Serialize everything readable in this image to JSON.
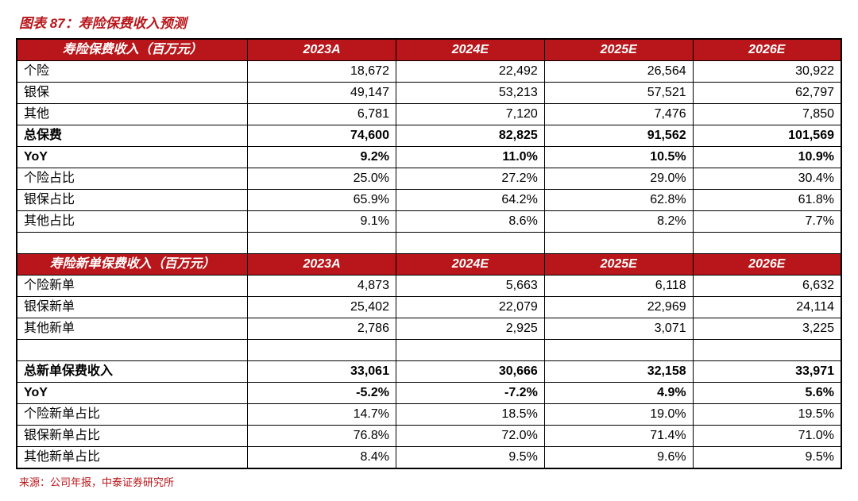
{
  "title_prefix": "图表 87：",
  "title_text": "寿险保费收入预测",
  "colors": {
    "header_bg": "#b8161a",
    "header_fg": "#ffffff",
    "border": "#000000",
    "title": "#b8161a",
    "source": "#b8161a",
    "body_bg": "#ffffff"
  },
  "section1": {
    "header_label": "寿险保费收入（百万元）",
    "header_cols": [
      "2023A",
      "2024E",
      "2025E",
      "2026E"
    ],
    "rows": [
      {
        "label": "个险",
        "vals": [
          "18,672",
          "22,492",
          "26,564",
          "30,922"
        ],
        "bold": false
      },
      {
        "label": "银保",
        "vals": [
          "49,147",
          "53,213",
          "57,521",
          "62,797"
        ],
        "bold": false
      },
      {
        "label": "其他",
        "vals": [
          "6,781",
          "7,120",
          "7,476",
          "7,850"
        ],
        "bold": false
      },
      {
        "label": "总保费",
        "vals": [
          "74,600",
          "82,825",
          "91,562",
          "101,569"
        ],
        "bold": true
      },
      {
        "label": "YoY",
        "vals": [
          "9.2%",
          "11.0%",
          "10.5%",
          "10.9%"
        ],
        "bold": true
      },
      {
        "label": "个险占比",
        "vals": [
          "25.0%",
          "27.2%",
          "29.0%",
          "30.4%"
        ],
        "bold": false
      },
      {
        "label": "银保占比",
        "vals": [
          "65.9%",
          "64.2%",
          "62.8%",
          "61.8%"
        ],
        "bold": false
      },
      {
        "label": "其他占比",
        "vals": [
          "9.1%",
          "8.6%",
          "8.2%",
          "7.7%"
        ],
        "bold": false
      }
    ]
  },
  "section2": {
    "header_label": "寿险新单保费收入（百万元）",
    "header_cols": [
      "2023A",
      "2024E",
      "2025E",
      "2026E"
    ],
    "rows": [
      {
        "label": "个险新单",
        "vals": [
          "4,873",
          "5,663",
          "6,118",
          "6,632"
        ],
        "bold": false
      },
      {
        "label": "银保新单",
        "vals": [
          "25,402",
          "22,079",
          "22,969",
          "24,114"
        ],
        "bold": false
      },
      {
        "label": "其他新单",
        "vals": [
          "2,786",
          "2,925",
          "3,071",
          "3,225"
        ],
        "bold": false
      }
    ],
    "rows2": [
      {
        "label": "总新单保费收入",
        "vals": [
          "33,061",
          "30,666",
          "32,158",
          "33,971"
        ],
        "bold": true
      },
      {
        "label": "YoY",
        "vals": [
          "-5.2%",
          "-7.2%",
          "4.9%",
          "5.6%"
        ],
        "bold": true
      },
      {
        "label": "个险新单占比",
        "vals": [
          "14.7%",
          "18.5%",
          "19.0%",
          "19.5%"
        ],
        "bold": false
      },
      {
        "label": "银保新单占比",
        "vals": [
          "76.8%",
          "72.0%",
          "71.4%",
          "71.0%"
        ],
        "bold": false
      },
      {
        "label": "其他新单占比",
        "vals": [
          "8.4%",
          "9.5%",
          "9.6%",
          "9.5%"
        ],
        "bold": false
      }
    ]
  },
  "source_text": "来源：公司年报，中泰证券研究所",
  "col_widths": [
    "28%",
    "18%",
    "18%",
    "18%",
    "18%"
  ]
}
